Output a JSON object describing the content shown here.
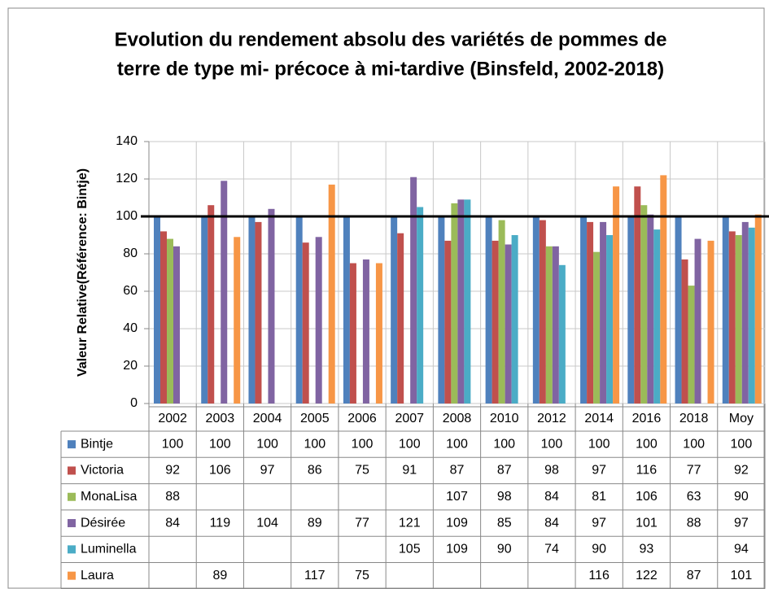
{
  "chart_data": {
    "type": "bar",
    "title": [
      "Evolution du rendement absolu des variétés de pommes de",
      "terre de type mi- précoce à mi-tardive (Binsfeld, 2002-2018)"
    ],
    "y_label": "Valeur Relative(Référence: Bintje)",
    "categories": [
      "2002",
      "2003",
      "2004",
      "2005",
      "2006",
      "2007",
      "2008",
      "2010",
      "2012",
      "2014",
      "2016",
      "2018",
      "Moy"
    ],
    "series": [
      {
        "name": "Bintje",
        "color": "#4f81bd",
        "values": [
          100,
          100,
          100,
          100,
          100,
          100,
          100,
          100,
          100,
          100,
          100,
          100,
          100
        ]
      },
      {
        "name": "Victoria",
        "color": "#c0504d",
        "values": [
          92,
          106,
          97,
          86,
          75,
          91,
          87,
          87,
          98,
          97,
          116,
          77,
          92
        ]
      },
      {
        "name": "MonaLisa",
        "color": "#9bbb59",
        "values": [
          88,
          null,
          null,
          null,
          null,
          null,
          107,
          98,
          84,
          81,
          106,
          63,
          90
        ]
      },
      {
        "name": "Désirée",
        "color": "#8064a2",
        "values": [
          84,
          119,
          104,
          89,
          77,
          121,
          109,
          85,
          84,
          97,
          101,
          88,
          97
        ]
      },
      {
        "name": "Luminella",
        "color": "#4bacc6",
        "values": [
          null,
          null,
          null,
          null,
          null,
          105,
          109,
          90,
          74,
          90,
          93,
          null,
          94
        ]
      },
      {
        "name": "Laura",
        "color": "#f79646",
        "values": [
          null,
          89,
          null,
          117,
          75,
          null,
          null,
          null,
          null,
          116,
          122,
          87,
          101
        ]
      }
    ],
    "reference_line": 100,
    "ylim": [
      0,
      140
    ],
    "yticks": [
      0,
      20,
      40,
      60,
      80,
      100,
      120,
      140
    ],
    "grid": true
  }
}
